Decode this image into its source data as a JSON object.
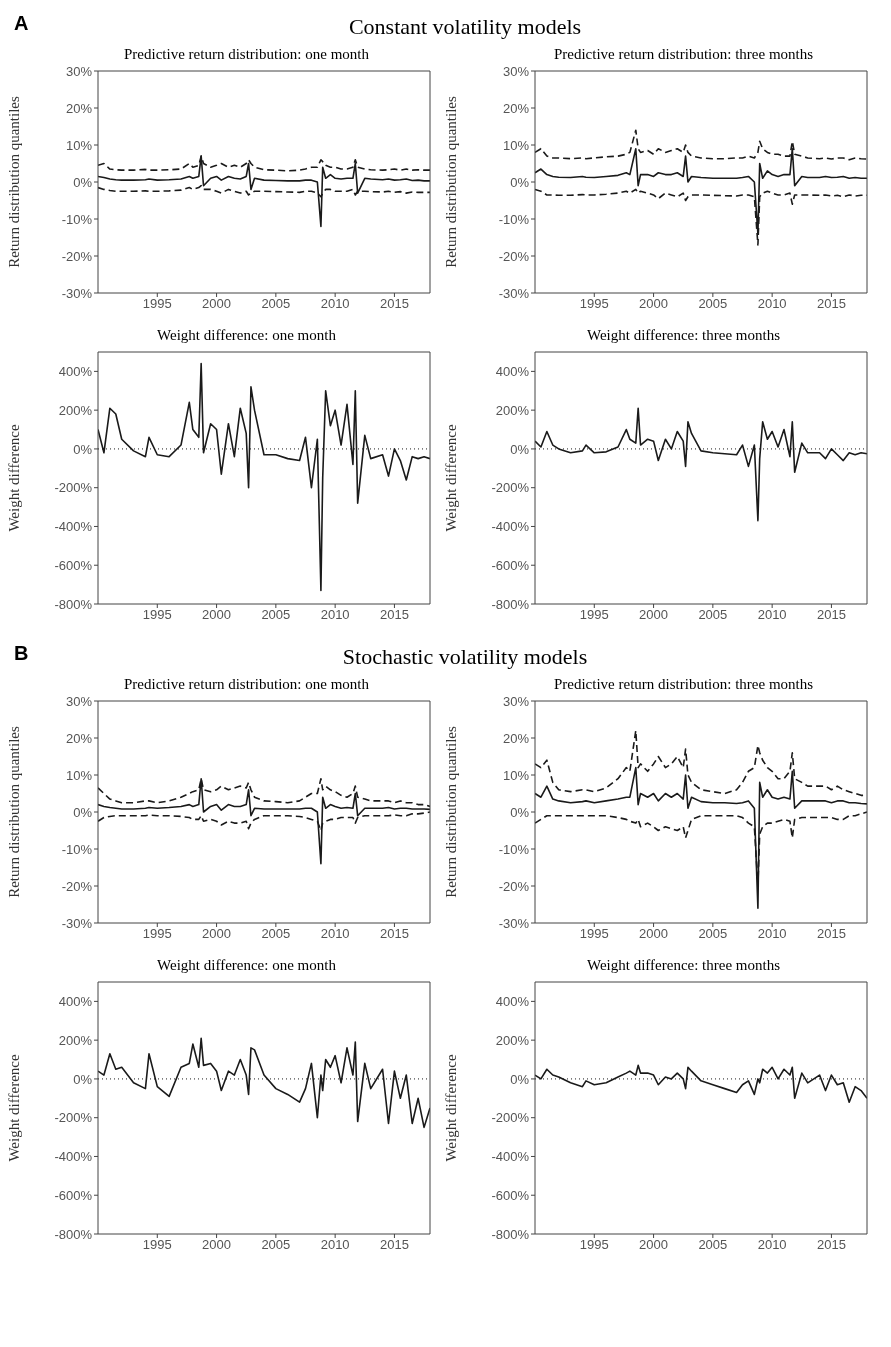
{
  "chart_data": [
    {
      "type": "line",
      "annotations": [
        "A",
        "Constant volatility models"
      ],
      "title": "Predictive return distribution: one month",
      "ylabel": "Return distribution quantiles",
      "x": [
        1990,
        1990.5,
        1991,
        1991.5,
        1992,
        1993,
        1994,
        1994.3,
        1995,
        1996,
        1997,
        1997.7,
        1998,
        1998.5,
        1998.7,
        1998.9,
        1999.5,
        2000,
        2000.4,
        2001,
        2001.5,
        2002,
        2002.5,
        2002.7,
        2002.9,
        2003.2,
        2004,
        2005,
        2006,
        2007,
        2007.5,
        2008,
        2008.5,
        2008.8,
        2008.95,
        2009.2,
        2009.6,
        2010,
        2010.5,
        2011,
        2011.5,
        2011.7,
        2011.9,
        2012.5,
        2013,
        2014,
        2014.5,
        2015,
        2015.5,
        2016,
        2016.5,
        2017,
        2017.5,
        2018
      ],
      "xlim": [
        1990,
        2018
      ],
      "xticks": [
        1995,
        2000,
        2005,
        2010,
        2015
      ],
      "ylim": [
        -30,
        30
      ],
      "yticks": [
        {
          "value": -30,
          "label": "-30%"
        },
        {
          "value": -20,
          "label": "-20%"
        },
        {
          "value": -10,
          "label": "-10%"
        },
        {
          "value": 0,
          "label": "0%"
        },
        {
          "value": 10,
          "label": "10%"
        },
        {
          "value": 20,
          "label": "20%"
        },
        {
          "value": 30,
          "label": "30%"
        }
      ],
      "series": [
        {
          "color": "#1a1a1a",
          "line_style": "dashed",
          "values": [
            4.5,
            5,
            3.5,
            3.3,
            3.2,
            3.2,
            3.4,
            3.2,
            3.2,
            3.3,
            3.5,
            5,
            4,
            4.5,
            7,
            5,
            4,
            4.5,
            5,
            4,
            4.5,
            4,
            5,
            6,
            5,
            4,
            3.3,
            3.2,
            3,
            3.2,
            3.5,
            4,
            4,
            6,
            5.5,
            4.5,
            4,
            4,
            3.5,
            3.5,
            4,
            6,
            4,
            3.5,
            3.3,
            3.2,
            3.3,
            3.5,
            3.2,
            3.5,
            3.2,
            3.3,
            3.2,
            3.2
          ]
        },
        {
          "color": "#1a1a1a",
          "line_style": "solid",
          "values": [
            1.5,
            1.2,
            0.8,
            0.6,
            0.5,
            0.5,
            0.6,
            0.8,
            0.5,
            0.6,
            0.8,
            1.5,
            1,
            1.5,
            7,
            -1,
            1,
            1.5,
            0.5,
            1.5,
            1,
            0.8,
            1.5,
            5,
            -2,
            1,
            0.5,
            0.4,
            0.3,
            0.3,
            0.5,
            0.5,
            0,
            -12,
            4,
            1,
            2,
            1,
            0.8,
            1,
            1,
            5,
            -3,
            1,
            0.8,
            0.6,
            0.8,
            0.5,
            0.6,
            0.8,
            0.4,
            0.5,
            0.3,
            0.3
          ]
        },
        {
          "color": "#1a1a1a",
          "line_style": "dashed",
          "values": [
            -1.5,
            -2,
            -2.3,
            -2.5,
            -2.5,
            -2.5,
            -2.4,
            -2.5,
            -2.5,
            -2.4,
            -2.2,
            -1.5,
            -2,
            -1.5,
            -1,
            -2,
            -2,
            -2.5,
            -3,
            -2,
            -2.5,
            -3,
            -2.5,
            -3.5,
            -3,
            -2.5,
            -2.5,
            -2.6,
            -2.7,
            -2.8,
            -2.5,
            -2.5,
            -3,
            -4,
            -3,
            -2,
            -2,
            -2.5,
            -2.5,
            -2.5,
            -2,
            -3.5,
            -2.5,
            -2.5,
            -2.6,
            -2.7,
            -2.5,
            -2.8,
            -2.6,
            -3,
            -2.7,
            -2.8,
            -2.8,
            -2.8
          ]
        }
      ]
    },
    {
      "type": "line",
      "title": "Predictive return distribution: three months",
      "ylabel": "Return distribution quantiles",
      "x": [
        1990,
        1990.5,
        1991,
        1991.5,
        1992,
        1993,
        1994,
        1994.3,
        1995,
        1996,
        1997,
        1997.7,
        1998,
        1998.5,
        1998.7,
        1998.9,
        1999.5,
        2000,
        2000.4,
        2001,
        2001.5,
        2002,
        2002.5,
        2002.7,
        2002.9,
        2003.2,
        2004,
        2005,
        2006,
        2007,
        2007.5,
        2008,
        2008.5,
        2008.8,
        2008.95,
        2009.2,
        2009.6,
        2010,
        2010.5,
        2011,
        2011.5,
        2011.7,
        2011.9,
        2012.5,
        2013,
        2014,
        2014.5,
        2015,
        2015.5,
        2016,
        2016.5,
        2017,
        2017.5,
        2018
      ],
      "xlim": [
        1990,
        2018
      ],
      "xticks": [
        1995,
        2000,
        2005,
        2010,
        2015
      ],
      "ylim": [
        -30,
        30
      ],
      "yticks": [
        {
          "value": -30,
          "label": "-30%"
        },
        {
          "value": -20,
          "label": "-20%"
        },
        {
          "value": -10,
          "label": "-10%"
        },
        {
          "value": 0,
          "label": "0%"
        },
        {
          "value": 10,
          "label": "10%"
        },
        {
          "value": 20,
          "label": "20%"
        },
        {
          "value": 30,
          "label": "30%"
        }
      ],
      "series": [
        {
          "color": "#1a1a1a",
          "line_style": "dashed",
          "values": [
            8,
            9,
            7,
            6.5,
            6.5,
            6.3,
            6.5,
            6.3,
            6.5,
            6.8,
            7,
            7.5,
            8,
            14,
            9,
            8,
            8.5,
            7.5,
            9,
            8,
            8.5,
            9,
            8,
            10,
            8,
            7,
            6.5,
            6.3,
            6.3,
            6.5,
            6.5,
            7,
            6.5,
            8,
            11,
            9,
            8,
            7.5,
            7.5,
            7,
            7,
            11,
            7.5,
            7,
            6.5,
            6.3,
            6.5,
            6.2,
            6.5,
            6.5,
            6,
            6.5,
            6.3,
            6.2
          ]
        },
        {
          "color": "#1a1a1a",
          "line_style": "solid",
          "values": [
            2.5,
            3.5,
            2,
            1.5,
            1.3,
            1.2,
            1.5,
            1.3,
            1.2,
            1.5,
            1.8,
            2.5,
            2,
            9,
            -1,
            2,
            2,
            1.5,
            2.5,
            2,
            2,
            2.5,
            1.5,
            7,
            0,
            1.5,
            1.2,
            1,
            1,
            1,
            1.2,
            1.5,
            0,
            -14,
            5,
            1,
            3,
            2,
            1.5,
            2,
            2,
            9,
            -1,
            1.5,
            1.2,
            1.2,
            1.5,
            1.2,
            1.3,
            1.5,
            1,
            1.2,
            1,
            1
          ]
        },
        {
          "color": "#1a1a1a",
          "line_style": "dashed",
          "values": [
            -2,
            -2.5,
            -3.5,
            -3.5,
            -3.6,
            -3.6,
            -3.4,
            -3.5,
            -3.5,
            -3.3,
            -3,
            -2.5,
            -3,
            -2,
            -3,
            -2.5,
            -3,
            -3.5,
            -4.5,
            -3,
            -3.5,
            -4,
            -3,
            -5,
            -4,
            -3.5,
            -3.5,
            -3.6,
            -3.7,
            -3.8,
            -3.5,
            -3.5,
            -4,
            -17,
            -4,
            -3,
            -2.5,
            -3,
            -3.5,
            -3.5,
            -3,
            -6,
            -3.5,
            -3.5,
            -3.5,
            -3.6,
            -3.5,
            -3.8,
            -3.6,
            -4,
            -3.5,
            -3.8,
            -3.6,
            -3.6
          ]
        }
      ]
    },
    {
      "type": "line",
      "title": "Weight difference: one month",
      "ylabel": "Weight difference",
      "x": [
        1990,
        1990.5,
        1991,
        1991.5,
        1992,
        1993,
        1994,
        1994.3,
        1995,
        1996,
        1997,
        1997.7,
        1998,
        1998.5,
        1998.7,
        1998.9,
        1999.5,
        2000,
        2000.4,
        2001,
        2001.5,
        2002,
        2002.5,
        2002.7,
        2002.9,
        2003.2,
        2004,
        2005,
        2006,
        2007,
        2007.5,
        2008,
        2008.5,
        2008.8,
        2008.95,
        2009.2,
        2009.6,
        2010,
        2010.5,
        2011,
        2011.5,
        2011.7,
        2011.9,
        2012.5,
        2013,
        2014,
        2014.5,
        2015,
        2015.5,
        2016,
        2016.5,
        2017,
        2017.5,
        2018
      ],
      "xlim": [
        1990,
        2018
      ],
      "xticks": [
        1995,
        2000,
        2005,
        2010,
        2015
      ],
      "ylim": [
        -800,
        500
      ],
      "yticks": [
        {
          "value": -800,
          "label": "-800%"
        },
        {
          "value": -600,
          "label": "-600%"
        },
        {
          "value": -400,
          "label": "-400%"
        },
        {
          "value": -200,
          "label": "-200%"
        },
        {
          "value": 0,
          "label": "0%"
        },
        {
          "value": 200,
          "label": "200%"
        },
        {
          "value": 400,
          "label": "400%"
        }
      ],
      "ref_lines": [
        {
          "axis": "y",
          "value": 0,
          "color": "#1a1a1a",
          "line_style": "dotted"
        }
      ],
      "series": [
        {
          "color": "#1a1a1a",
          "line_style": "solid",
          "values": [
            100,
            -20,
            210,
            180,
            50,
            -10,
            -40,
            60,
            -30,
            -40,
            20,
            240,
            100,
            60,
            440,
            -20,
            130,
            100,
            -130,
            130,
            -40,
            210,
            80,
            -200,
            320,
            200,
            -30,
            -30,
            -50,
            -60,
            60,
            -200,
            50,
            -730,
            -150,
            300,
            120,
            200,
            20,
            230,
            -80,
            300,
            -280,
            70,
            -50,
            -30,
            -140,
            0,
            -60,
            -160,
            -40,
            -50,
            -40,
            -50
          ]
        }
      ]
    },
    {
      "type": "line",
      "title": "Weight difference: three months",
      "ylabel": "Weight difference",
      "x": [
        1990,
        1990.5,
        1991,
        1991.5,
        1992,
        1993,
        1994,
        1994.3,
        1995,
        1996,
        1997,
        1997.7,
        1998,
        1998.5,
        1998.7,
        1998.9,
        1999.5,
        2000,
        2000.4,
        2001,
        2001.5,
        2002,
        2002.5,
        2002.7,
        2002.9,
        2003.2,
        2004,
        2005,
        2006,
        2007,
        2007.5,
        2008,
        2008.5,
        2008.8,
        2008.95,
        2009.2,
        2009.6,
        2010,
        2010.5,
        2011,
        2011.5,
        2011.7,
        2011.9,
        2012.5,
        2013,
        2014,
        2014.5,
        2015,
        2015.5,
        2016,
        2016.5,
        2017,
        2017.5,
        2018
      ],
      "xlim": [
        1990,
        2018
      ],
      "xticks": [
        1995,
        2000,
        2005,
        2010,
        2015
      ],
      "ylim": [
        -800,
        500
      ],
      "yticks": [
        {
          "value": -800,
          "label": "-800%"
        },
        {
          "value": -600,
          "label": "-600%"
        },
        {
          "value": -400,
          "label": "-400%"
        },
        {
          "value": -200,
          "label": "-200%"
        },
        {
          "value": 0,
          "label": "0%"
        },
        {
          "value": 200,
          "label": "200%"
        },
        {
          "value": 400,
          "label": "400%"
        }
      ],
      "ref_lines": [
        {
          "axis": "y",
          "value": 0,
          "color": "#1a1a1a",
          "line_style": "dotted"
        }
      ],
      "series": [
        {
          "color": "#1a1a1a",
          "line_style": "solid",
          "values": [
            40,
            10,
            90,
            20,
            0,
            -20,
            -10,
            20,
            -20,
            -15,
            10,
            100,
            50,
            30,
            210,
            20,
            50,
            40,
            -60,
            50,
            0,
            90,
            40,
            -90,
            140,
            80,
            -10,
            -20,
            -25,
            -30,
            20,
            -90,
            20,
            -370,
            -50,
            140,
            50,
            90,
            10,
            100,
            -40,
            140,
            -120,
            30,
            -20,
            -20,
            -50,
            0,
            -30,
            -60,
            -20,
            -30,
            -20,
            -25
          ]
        }
      ]
    },
    {
      "type": "line",
      "annotations": [
        "B",
        "Stochastic volatility models"
      ],
      "title": "Predictive return distribution: one month",
      "ylabel": "Return distribution quantiles",
      "x": [
        1990,
        1990.5,
        1991,
        1991.5,
        1992,
        1993,
        1994,
        1994.3,
        1995,
        1996,
        1997,
        1997.7,
        1998,
        1998.5,
        1998.7,
        1998.9,
        1999.5,
        2000,
        2000.4,
        2001,
        2001.5,
        2002,
        2002.5,
        2002.7,
        2002.9,
        2003.2,
        2004,
        2005,
        2006,
        2007,
        2007.5,
        2008,
        2008.5,
        2008.8,
        2008.95,
        2009.2,
        2009.6,
        2010,
        2010.5,
        2011,
        2011.5,
        2011.7,
        2011.9,
        2012.5,
        2013,
        2014,
        2014.5,
        2015,
        2015.5,
        2016,
        2016.5,
        2017,
        2017.5,
        2018
      ],
      "xlim": [
        1990,
        2018
      ],
      "xticks": [
        1995,
        2000,
        2005,
        2010,
        2015
      ],
      "ylim": [
        -30,
        30
      ],
      "yticks": [
        {
          "value": -30,
          "label": "-30%"
        },
        {
          "value": -20,
          "label": "-20%"
        },
        {
          "value": -10,
          "label": "-10%"
        },
        {
          "value": 0,
          "label": "0%"
        },
        {
          "value": 10,
          "label": "10%"
        },
        {
          "value": 20,
          "label": "20%"
        },
        {
          "value": 30,
          "label": "30%"
        }
      ],
      "series": [
        {
          "color": "#1a1a1a",
          "line_style": "dashed",
          "values": [
            6.5,
            5,
            3.5,
            3,
            2.5,
            2.5,
            3,
            3,
            2.5,
            3,
            4,
            5,
            5.5,
            6,
            9,
            6,
            5.5,
            6,
            7,
            6,
            6.5,
            7,
            6.5,
            8,
            6,
            4,
            3,
            2.8,
            2.5,
            3,
            4,
            5,
            5,
            9,
            6,
            7,
            6,
            5.5,
            4.5,
            4,
            5,
            7,
            4,
            3.5,
            3,
            3,
            3,
            2.5,
            3,
            2.5,
            2.5,
            2,
            2,
            1.5
          ]
        },
        {
          "color": "#1a1a1a",
          "line_style": "solid",
          "values": [
            2,
            1.5,
            1.2,
            1,
            0.8,
            0.8,
            1,
            1.2,
            1,
            1.2,
            1.5,
            2,
            1.5,
            2,
            9,
            0,
            1.5,
            2,
            0.5,
            2,
            1.5,
            1.5,
            2,
            6,
            -1,
            1,
            0.8,
            0.8,
            0.8,
            0.8,
            1,
            1,
            0,
            -14,
            4,
            1,
            2,
            1.5,
            1,
            1.2,
            1,
            5,
            -1,
            1,
            1,
            1,
            1.2,
            0.8,
            1,
            1,
            0.8,
            0.8,
            0.8,
            0.7
          ]
        },
        {
          "color": "#1a1a1a",
          "line_style": "dashed",
          "values": [
            -2.5,
            -1.5,
            -1.2,
            -1,
            -1,
            -1,
            -1,
            -0.8,
            -1,
            -1,
            -1.2,
            -1.5,
            -2,
            -2,
            -1,
            -2.5,
            -2,
            -2.5,
            -3.5,
            -2.5,
            -3,
            -3,
            -2.5,
            -4.5,
            -3,
            -2,
            -1,
            -1,
            -1,
            -1.2,
            -1.5,
            -2,
            -2.5,
            -5,
            -3,
            -2.5,
            -2,
            -2,
            -1.5,
            -1.5,
            -1.5,
            -3,
            -1.5,
            -1,
            -1,
            -1,
            -1,
            -0.8,
            -1,
            -1,
            -0.5,
            -0.5,
            -0.3,
            0
          ]
        }
      ]
    },
    {
      "type": "line",
      "title": "Predictive return distribution: three months",
      "ylabel": "Return distribution quantiles",
      "x": [
        1990,
        1990.5,
        1991,
        1991.5,
        1992,
        1993,
        1994,
        1994.3,
        1995,
        1996,
        1997,
        1997.7,
        1998,
        1998.5,
        1998.7,
        1998.9,
        1999.5,
        2000,
        2000.4,
        2001,
        2001.5,
        2002,
        2002.5,
        2002.7,
        2002.9,
        2003.2,
        2004,
        2005,
        2006,
        2007,
        2007.5,
        2008,
        2008.5,
        2008.8,
        2008.95,
        2009.2,
        2009.6,
        2010,
        2010.5,
        2011,
        2011.5,
        2011.7,
        2011.9,
        2012.5,
        2013,
        2014,
        2014.5,
        2015,
        2015.5,
        2016,
        2016.5,
        2017,
        2017.5,
        2018
      ],
      "xlim": [
        1990,
        2018
      ],
      "xticks": [
        1995,
        2000,
        2005,
        2010,
        2015
      ],
      "ylim": [
        -30,
        30
      ],
      "yticks": [
        {
          "value": -30,
          "label": "-30%"
        },
        {
          "value": -20,
          "label": "-20%"
        },
        {
          "value": -10,
          "label": "-10%"
        },
        {
          "value": 0,
          "label": "0%"
        },
        {
          "value": 10,
          "label": "10%"
        },
        {
          "value": 20,
          "label": "20%"
        },
        {
          "value": 30,
          "label": "30%"
        }
      ],
      "series": [
        {
          "color": "#1a1a1a",
          "line_style": "dashed",
          "values": [
            13,
            12,
            14,
            8,
            6,
            5.5,
            6,
            6,
            5.5,
            6.5,
            9,
            12,
            11,
            22,
            12,
            13,
            11,
            13,
            15,
            12,
            13,
            15,
            12,
            17,
            10,
            8,
            6,
            5.5,
            5,
            6,
            8,
            11,
            12,
            18,
            16,
            14,
            12,
            11,
            9,
            9,
            11,
            16,
            9,
            8,
            7,
            7,
            7,
            6,
            7,
            6,
            5.5,
            5,
            4.5,
            4.5
          ]
        },
        {
          "color": "#1a1a1a",
          "line_style": "solid",
          "values": [
            5,
            4,
            7,
            3.5,
            3,
            2.5,
            2.8,
            3,
            2.5,
            3,
            3.5,
            4,
            4,
            12,
            2,
            5,
            4,
            5,
            3,
            5,
            4,
            5,
            3.5,
            10,
            1,
            4,
            2.8,
            2.5,
            2.5,
            2.3,
            2.5,
            3,
            1,
            -26,
            8,
            4,
            6,
            4,
            3.5,
            4,
            3.5,
            11,
            1,
            3,
            3,
            3,
            3,
            2.5,
            3,
            3,
            2.5,
            2.5,
            2.3,
            2.2
          ]
        },
        {
          "color": "#1a1a1a",
          "line_style": "dashed",
          "values": [
            -3,
            -2,
            -1,
            -1,
            -1,
            -1,
            -1,
            -1,
            -1,
            -1,
            -1.5,
            -2,
            -2.5,
            -3,
            -2,
            -4,
            -3,
            -4,
            -5,
            -4,
            -4.5,
            -5,
            -4,
            -7,
            -5,
            -2,
            -1,
            -1,
            -1,
            -1,
            -1.5,
            -3,
            -4,
            -20,
            -6,
            -4,
            -3,
            -3,
            -2.5,
            -2,
            -2.5,
            -7,
            -2,
            -1.5,
            -1.5,
            -1.5,
            -1.5,
            -1.5,
            -2,
            -2,
            -1,
            -1,
            -0.5,
            0
          ]
        }
      ]
    },
    {
      "type": "line",
      "title": "Weight difference: one month",
      "ylabel": "Weight difference",
      "x": [
        1990,
        1990.5,
        1991,
        1991.5,
        1992,
        1993,
        1994,
        1994.3,
        1995,
        1996,
        1997,
        1997.7,
        1998,
        1998.5,
        1998.7,
        1998.9,
        1999.5,
        2000,
        2000.4,
        2001,
        2001.5,
        2002,
        2002.5,
        2002.7,
        2002.9,
        2003.2,
        2004,
        2005,
        2006,
        2007,
        2007.5,
        2008,
        2008.5,
        2008.8,
        2008.95,
        2009.2,
        2009.6,
        2010,
        2010.5,
        2011,
        2011.5,
        2011.7,
        2011.9,
        2012.5,
        2013,
        2014,
        2014.5,
        2015,
        2015.5,
        2016,
        2016.5,
        2017,
        2017.5,
        2018
      ],
      "xlim": [
        1990,
        2018
      ],
      "xticks": [
        1995,
        2000,
        2005,
        2010,
        2015
      ],
      "ylim": [
        -800,
        500
      ],
      "yticks": [
        {
          "value": -800,
          "label": "-800%"
        },
        {
          "value": -600,
          "label": "-600%"
        },
        {
          "value": -400,
          "label": "-400%"
        },
        {
          "value": -200,
          "label": "-200%"
        },
        {
          "value": 0,
          "label": "0%"
        },
        {
          "value": 200,
          "label": "200%"
        },
        {
          "value": 400,
          "label": "400%"
        }
      ],
      "ref_lines": [
        {
          "axis": "y",
          "value": 0,
          "color": "#1a1a1a",
          "line_style": "dotted"
        }
      ],
      "series": [
        {
          "color": "#1a1a1a",
          "line_style": "solid",
          "values": [
            40,
            20,
            130,
            50,
            60,
            -20,
            -50,
            130,
            -40,
            -90,
            60,
            80,
            180,
            60,
            210,
            70,
            80,
            40,
            -60,
            40,
            20,
            100,
            20,
            -80,
            160,
            150,
            20,
            -50,
            -80,
            -120,
            -50,
            80,
            -200,
            20,
            -60,
            100,
            60,
            120,
            -20,
            160,
            20,
            190,
            -220,
            80,
            -50,
            50,
            -230,
            40,
            -100,
            20,
            -230,
            -100,
            -250,
            -150
          ]
        }
      ]
    },
    {
      "type": "line",
      "title": "Weight difference: three months",
      "ylabel": "Weight difference",
      "x": [
        1990,
        1990.5,
        1991,
        1991.5,
        1992,
        1993,
        1994,
        1994.3,
        1995,
        1996,
        1997,
        1997.7,
        1998,
        1998.5,
        1998.7,
        1998.9,
        1999.5,
        2000,
        2000.4,
        2001,
        2001.5,
        2002,
        2002.5,
        2002.7,
        2002.9,
        2003.2,
        2004,
        2005,
        2006,
        2007,
        2007.5,
        2008,
        2008.5,
        2008.8,
        2008.95,
        2009.2,
        2009.6,
        2010,
        2010.5,
        2011,
        2011.5,
        2011.7,
        2011.9,
        2012.5,
        2013,
        2014,
        2014.5,
        2015,
        2015.5,
        2016,
        2016.5,
        2017,
        2017.5,
        2018
      ],
      "xlim": [
        1990,
        2018
      ],
      "xticks": [
        1995,
        2000,
        2005,
        2010,
        2015
      ],
      "ylim": [
        -800,
        500
      ],
      "yticks": [
        {
          "value": -800,
          "label": "-800%"
        },
        {
          "value": -600,
          "label": "-600%"
        },
        {
          "value": -400,
          "label": "-400%"
        },
        {
          "value": -200,
          "label": "-200%"
        },
        {
          "value": 0,
          "label": "0%"
        },
        {
          "value": 200,
          "label": "200%"
        },
        {
          "value": 400,
          "label": "400%"
        }
      ],
      "ref_lines": [
        {
          "axis": "y",
          "value": 0,
          "color": "#1a1a1a",
          "line_style": "dotted"
        }
      ],
      "series": [
        {
          "color": "#1a1a1a",
          "line_style": "solid",
          "values": [
            20,
            0,
            50,
            20,
            10,
            -20,
            -40,
            -10,
            -30,
            -20,
            10,
            30,
            40,
            20,
            70,
            30,
            30,
            20,
            -30,
            10,
            0,
            30,
            0,
            -50,
            60,
            40,
            -10,
            -30,
            -50,
            -70,
            -30,
            -10,
            -80,
            0,
            -20,
            50,
            30,
            60,
            0,
            50,
            20,
            60,
            -100,
            30,
            -20,
            20,
            -60,
            20,
            -30,
            -20,
            -120,
            -40,
            -60,
            -100
          ]
        }
      ]
    }
  ]
}
